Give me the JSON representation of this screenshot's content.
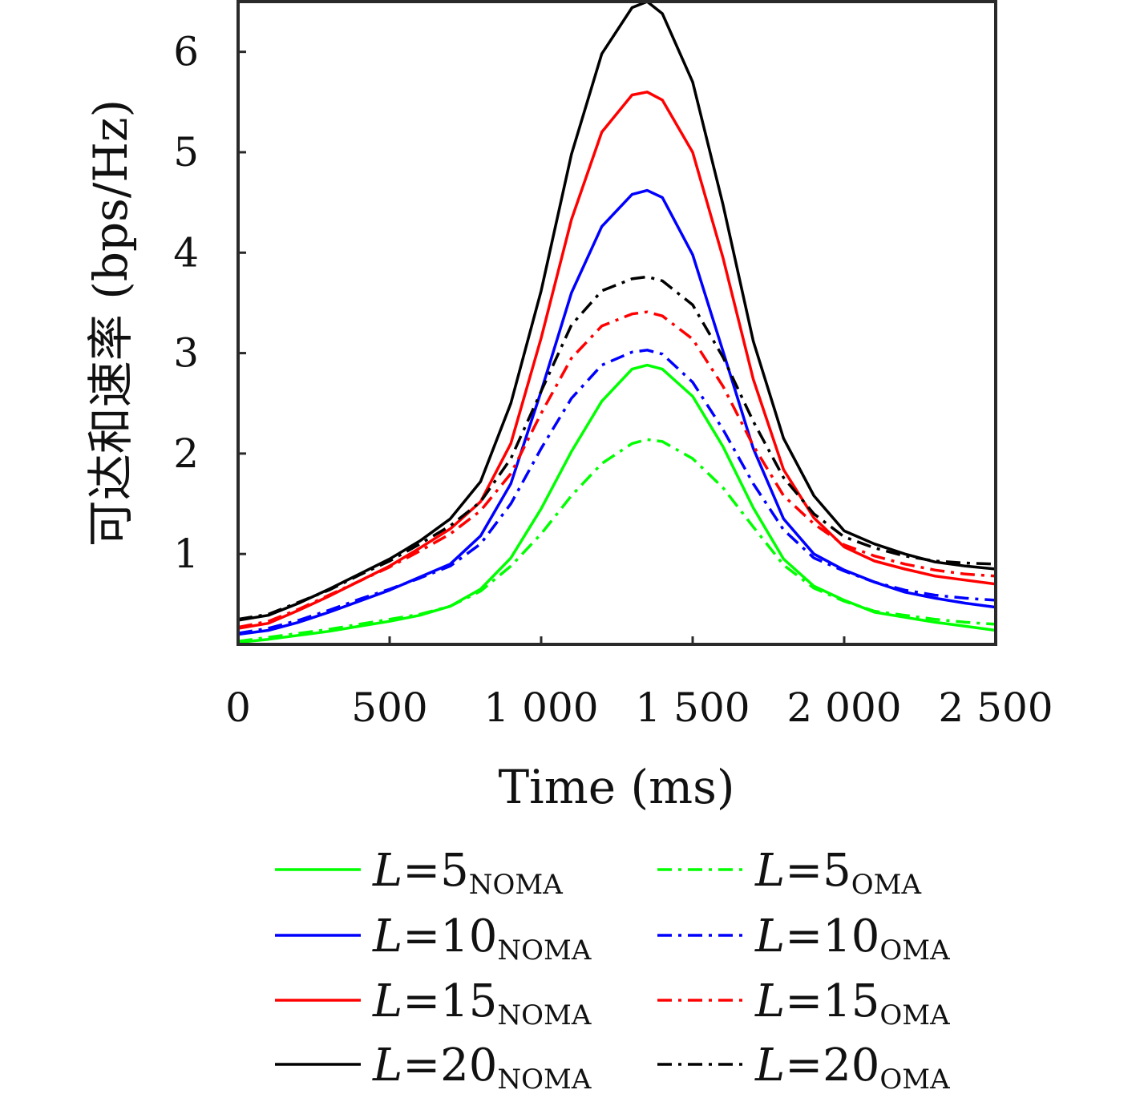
{
  "chart_data": {
    "type": "line",
    "xlabel": "Time (ms)",
    "ylabel": "可达和速率 (bps/Hz)",
    "xlim": [
      0,
      2500
    ],
    "ylim": [
      0.1,
      6.5
    ],
    "x_ticks": [
      0,
      500,
      1000,
      1500,
      2000,
      2500
    ],
    "x_tick_labels": [
      "0",
      "500",
      "1 000",
      "1 500",
      "2 000",
      "2 500"
    ],
    "y_ticks": [
      1,
      2,
      3,
      4,
      5,
      6
    ],
    "y_tick_labels": [
      "1",
      "2",
      "3",
      "4",
      "5",
      "6"
    ],
    "grid": false,
    "legend_position": "bottom",
    "x": [
      0,
      100,
      200,
      300,
      400,
      500,
      600,
      700,
      800,
      900,
      1000,
      1100,
      1200,
      1300,
      1350,
      1400,
      1500,
      1600,
      1700,
      1800,
      1900,
      2000,
      2100,
      2200,
      2300,
      2400,
      2500
    ],
    "series": [
      {
        "name": "L=5",
        "sub": "NOMA",
        "color": "#00ff00",
        "dash": "solid",
        "values": [
          0.12,
          0.15,
          0.19,
          0.23,
          0.28,
          0.33,
          0.39,
          0.48,
          0.65,
          0.96,
          1.45,
          2.02,
          2.52,
          2.84,
          2.88,
          2.84,
          2.57,
          2.07,
          1.46,
          0.95,
          0.68,
          0.54,
          0.42,
          0.37,
          0.32,
          0.28,
          0.24
        ]
      },
      {
        "name": "L=5",
        "sub": "OMA",
        "color": "#00ff00",
        "dash": "dashdot",
        "values": [
          0.13,
          0.17,
          0.21,
          0.25,
          0.3,
          0.35,
          0.4,
          0.48,
          0.63,
          0.88,
          1.2,
          1.58,
          1.9,
          2.1,
          2.14,
          2.12,
          1.95,
          1.66,
          1.27,
          0.89,
          0.66,
          0.53,
          0.43,
          0.39,
          0.35,
          0.32,
          0.3
        ]
      },
      {
        "name": "L=10",
        "sub": "NOMA",
        "color": "#0000ff",
        "dash": "solid",
        "values": [
          0.2,
          0.24,
          0.32,
          0.42,
          0.53,
          0.64,
          0.77,
          0.9,
          1.18,
          1.7,
          2.62,
          3.6,
          4.26,
          4.58,
          4.62,
          4.55,
          3.98,
          3.02,
          2.05,
          1.35,
          1.0,
          0.84,
          0.72,
          0.62,
          0.56,
          0.51,
          0.47
        ]
      },
      {
        "name": "L=10",
        "sub": "OMA",
        "color": "#0000ff",
        "dash": "dashdot",
        "values": [
          0.21,
          0.26,
          0.34,
          0.44,
          0.55,
          0.65,
          0.76,
          0.88,
          1.1,
          1.5,
          2.05,
          2.55,
          2.88,
          3.01,
          3.03,
          2.99,
          2.71,
          2.24,
          1.7,
          1.24,
          0.96,
          0.83,
          0.72,
          0.64,
          0.59,
          0.56,
          0.54
        ]
      },
      {
        "name": "L=15",
        "sub": "NOMA",
        "color": "#ff0000",
        "dash": "solid",
        "values": [
          0.26,
          0.31,
          0.44,
          0.58,
          0.73,
          0.88,
          1.06,
          1.25,
          1.52,
          2.1,
          3.15,
          4.33,
          5.2,
          5.57,
          5.6,
          5.52,
          5.0,
          3.95,
          2.74,
          1.84,
          1.36,
          1.07,
          0.93,
          0.85,
          0.78,
          0.74,
          0.7
        ]
      },
      {
        "name": "L=15",
        "sub": "OMA",
        "color": "#ff0000",
        "dash": "dashdot",
        "values": [
          0.27,
          0.33,
          0.45,
          0.59,
          0.73,
          0.87,
          1.03,
          1.2,
          1.43,
          1.8,
          2.4,
          2.95,
          3.27,
          3.39,
          3.41,
          3.37,
          3.14,
          2.67,
          2.08,
          1.58,
          1.3,
          1.09,
          0.98,
          0.9,
          0.84,
          0.8,
          0.78
        ]
      },
      {
        "name": "L=20",
        "sub": "NOMA",
        "color": "#000000",
        "dash": "solid",
        "values": [
          0.34,
          0.39,
          0.51,
          0.65,
          0.8,
          0.95,
          1.13,
          1.35,
          1.72,
          2.5,
          3.62,
          4.98,
          5.98,
          6.44,
          6.5,
          6.38,
          5.7,
          4.48,
          3.12,
          2.15,
          1.58,
          1.23,
          1.1,
          1.0,
          0.92,
          0.88,
          0.85
        ]
      },
      {
        "name": "L=20",
        "sub": "OMA",
        "color": "#000000",
        "dash": "dashdot",
        "values": [
          0.35,
          0.4,
          0.52,
          0.64,
          0.79,
          0.93,
          1.1,
          1.28,
          1.52,
          1.95,
          2.62,
          3.28,
          3.62,
          3.74,
          3.76,
          3.72,
          3.48,
          2.96,
          2.32,
          1.76,
          1.4,
          1.17,
          1.06,
          0.98,
          0.93,
          0.91,
          0.9
        ]
      }
    ]
  }
}
